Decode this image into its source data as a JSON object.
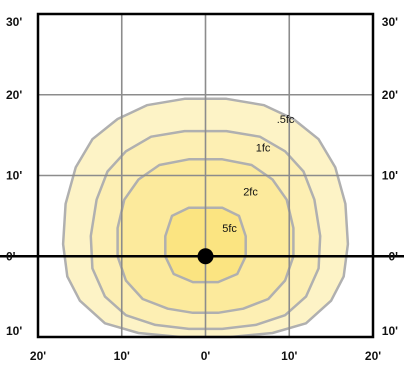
{
  "chart_data": {
    "type": "contour",
    "title": "",
    "xlabel": "",
    "ylabel": "",
    "xlim": [
      -20,
      20
    ],
    "ylim": [
      -10,
      30
    ],
    "x_ticks": [
      -20,
      -10,
      0,
      10,
      20
    ],
    "y_ticks": [
      -10,
      0,
      10,
      20,
      30
    ],
    "x_tick_labels": [
      "20'",
      "10'",
      "0'",
      "10'",
      "20'"
    ],
    "y_tick_labels": [
      "10'",
      "0'",
      "10'",
      "20'",
      "30'"
    ],
    "grid": true,
    "fixture_position": [
      0,
      0
    ],
    "contours": [
      {
        "label": ".5fc",
        "fill": "#fdf3c6",
        "points": [
          [
            -2.5,
            19.5
          ],
          [
            2.5,
            19.5
          ],
          [
            7,
            18.7
          ],
          [
            10.5,
            17
          ],
          [
            13.5,
            14.5
          ],
          [
            15.5,
            11
          ],
          [
            16.7,
            6.5
          ],
          [
            17,
            1.5
          ],
          [
            16.5,
            -2.5
          ],
          [
            15,
            -5.5
          ],
          [
            12,
            -8.3
          ],
          [
            8,
            -9.5
          ],
          [
            3,
            -10
          ],
          [
            -3,
            -10
          ],
          [
            -8,
            -9.5
          ],
          [
            -12,
            -8.3
          ],
          [
            -15,
            -5.5
          ],
          [
            -16.5,
            -2.5
          ],
          [
            -17,
            1.5
          ],
          [
            -16.7,
            6.5
          ],
          [
            -15.5,
            11
          ],
          [
            -13.5,
            14.5
          ],
          [
            -10.5,
            17
          ],
          [
            -7,
            18.7
          ]
        ]
      },
      {
        "label": "1fc",
        "fill": "#fdefb3",
        "points": [
          [
            -2.5,
            15.5
          ],
          [
            2.5,
            15.5
          ],
          [
            6.5,
            14.8
          ],
          [
            9.5,
            13
          ],
          [
            11.7,
            10.5
          ],
          [
            13,
            7
          ],
          [
            13.7,
            2.5
          ],
          [
            13.5,
            -1.5
          ],
          [
            12,
            -5
          ],
          [
            9.5,
            -7.3
          ],
          [
            6,
            -8.5
          ],
          [
            2,
            -9
          ],
          [
            -2,
            -9
          ],
          [
            -6,
            -8.5
          ],
          [
            -9.5,
            -7.3
          ],
          [
            -12,
            -5
          ],
          [
            -13.5,
            -1.5
          ],
          [
            -13.7,
            2.5
          ],
          [
            -13,
            7
          ],
          [
            -11.7,
            10.5
          ],
          [
            -9.5,
            13
          ],
          [
            -6.5,
            14.8
          ]
        ]
      },
      {
        "label": "2fc",
        "fill": "#fcea9c",
        "points": [
          [
            -2,
            12
          ],
          [
            2,
            12
          ],
          [
            5.5,
            11.3
          ],
          [
            8,
            9.5
          ],
          [
            9.7,
            7
          ],
          [
            10.5,
            3.5
          ],
          [
            10.5,
            0
          ],
          [
            9.5,
            -3
          ],
          [
            7.5,
            -5.3
          ],
          [
            4.5,
            -6.5
          ],
          [
            1.5,
            -7
          ],
          [
            -1.5,
            -7
          ],
          [
            -4.5,
            -6.5
          ],
          [
            -7.5,
            -5.3
          ],
          [
            -9.5,
            -3
          ],
          [
            -10.5,
            0
          ],
          [
            -10.5,
            3.5
          ],
          [
            -9.7,
            7
          ],
          [
            -8,
            9.5
          ],
          [
            -5.5,
            11.3
          ]
        ]
      },
      {
        "label": "5fc",
        "fill": "#fbe481",
        "points": [
          [
            -2,
            6
          ],
          [
            2,
            6
          ],
          [
            4,
            5
          ],
          [
            4.8,
            2.5
          ],
          [
            4.8,
            0
          ],
          [
            3.8,
            -2.2
          ],
          [
            1.5,
            -3.2
          ],
          [
            -1.5,
            -3.2
          ],
          [
            -3.8,
            -2.2
          ],
          [
            -4.8,
            0
          ],
          [
            -4.8,
            2.5
          ],
          [
            -4,
            5
          ]
        ]
      }
    ],
    "colors": {
      "contour_stroke": "#b0b0b0",
      "grid": "#8c8c8c",
      "axis": "#000000",
      "fixture": "#000000"
    }
  }
}
